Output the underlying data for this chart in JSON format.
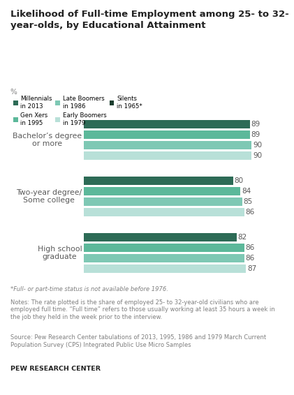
{
  "title": "Likelihood of Full-time Employment among 25- to 32-\nyear-olds, by Educational Attainment",
  "ylabel_label": "%",
  "groups": [
    "Bachelor’s degree\nor more",
    "Two-year degree/\nSome college",
    "High school\ngraduate"
  ],
  "series_labels": [
    "Millennials\nin 2013",
    "Gen Xers\nin 1995",
    "Late Boomers\nin 1986",
    "Early Boomers\nin 1979",
    "Silents\nin 1965*"
  ],
  "bar_colors": [
    "#2d6b56",
    "#5cb89a",
    "#7ec8b4",
    "#b8e0d8",
    "#1a3d2e"
  ],
  "values": [
    [
      89,
      89,
      90,
      90
    ],
    [
      80,
      84,
      85,
      86
    ],
    [
      82,
      86,
      86,
      87
    ]
  ],
  "footnote1": "*Full- or part-time status is not available before 1976.",
  "footnote2": "Notes: The rate plotted is the share of employed 25- to 32-year-old civilians who are\nemployed full time. “Full time” refers to those usually working at least 35 hours a week in\nthe job they held in the week prior to the interview.",
  "footnote3": "Source: Pew Research Center tabulations of 2013, 1995, 1986 and 1979 March Current\nPopulation Survey (CPS) Integrated Public Use Micro Samples",
  "brand": "PEW RESEARCH CENTER",
  "label_color": "#595959",
  "title_color": "#222222",
  "footnote_color": "#7f7f7f"
}
